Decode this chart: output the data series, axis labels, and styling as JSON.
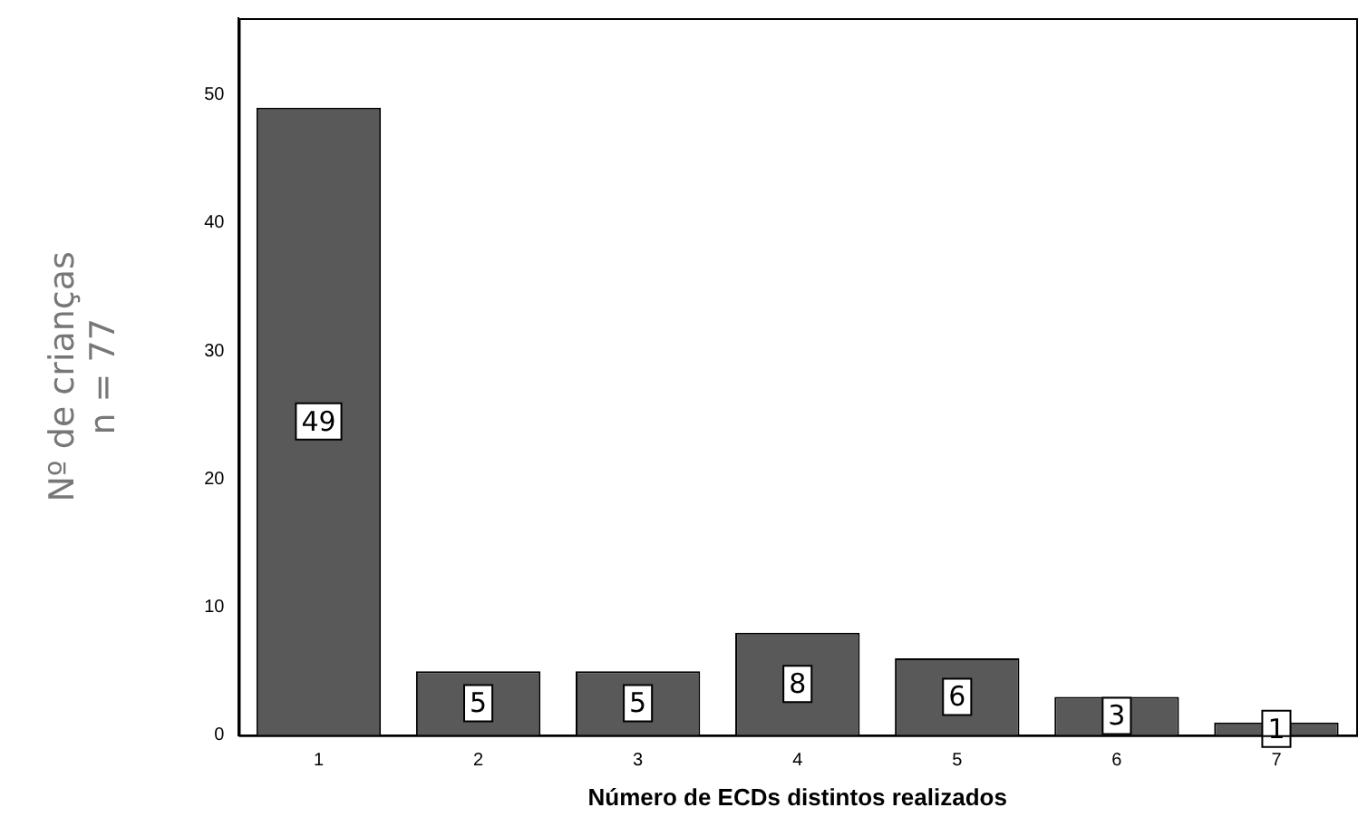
{
  "chart_data": {
    "type": "bar",
    "xlabel": "Número de ECDs distintos realizados",
    "ylabel": "Nº de crianças",
    "annotations": [
      "n = 77"
    ],
    "categories": [
      "1",
      "2",
      "3",
      "4",
      "5",
      "6",
      "7"
    ],
    "values": [
      49,
      5,
      5,
      8,
      6,
      3,
      1
    ],
    "color": "#595959",
    "ylim": [
      0,
      56
    ],
    "yticks": [
      0,
      10,
      20,
      30,
      40,
      50
    ],
    "grid": false,
    "legend": false,
    "data_labels": true
  }
}
